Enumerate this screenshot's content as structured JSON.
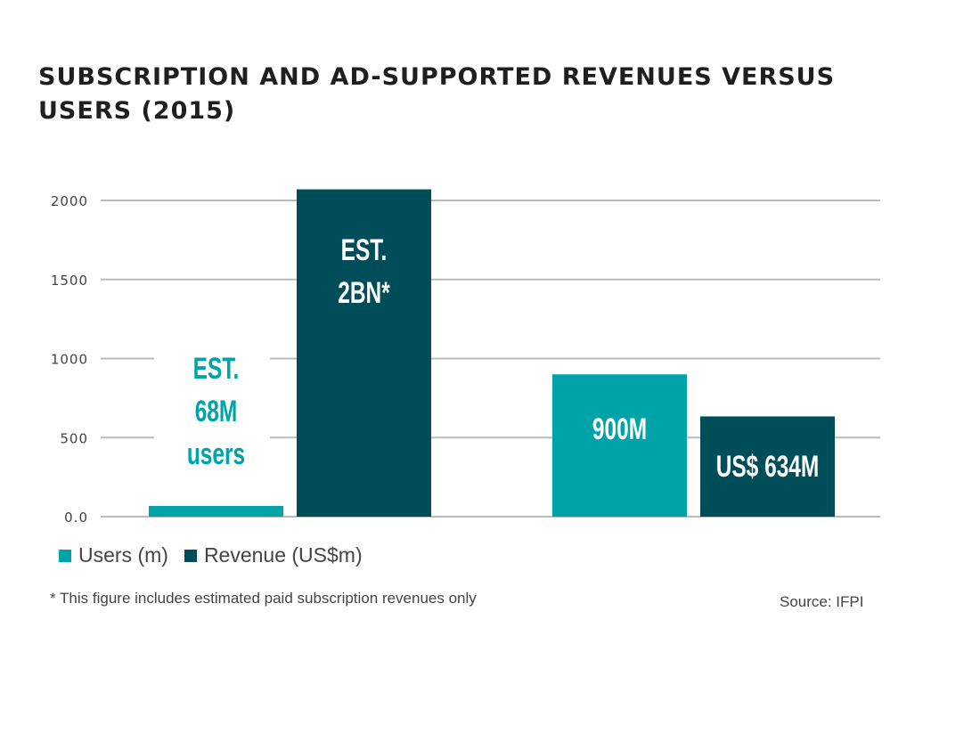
{
  "chart_data": {
    "type": "bar",
    "title": "SUBSCRIPTION AND AD-SUPPORTED REVENUES VERSUS USERS (2015)",
    "ylim": [
      0,
      2000
    ],
    "yticks": [
      "0.0",
      "500",
      "1000",
      "1500",
      "2000"
    ],
    "ytick_values": [
      0,
      500,
      1000,
      1500,
      2000
    ],
    "grid": true,
    "series": [
      {
        "name": "Users (m)",
        "color": "#00a3a8",
        "values": [
          68,
          900
        ],
        "labels": [
          [
            "EST.",
            "68M",
            "users"
          ],
          [
            "900M"
          ]
        ]
      },
      {
        "name": "Revenue (US$m)",
        "color": "#004d5a",
        "values": [
          2070,
          634
        ],
        "labels": [
          [
            "EST.",
            "2BN*"
          ],
          [
            "US$ 634M"
          ]
        ]
      }
    ],
    "legend_position": "bottom-left",
    "footnote": "* This figure includes estimated paid subscription revenues only",
    "source": "Source: IFPI"
  }
}
